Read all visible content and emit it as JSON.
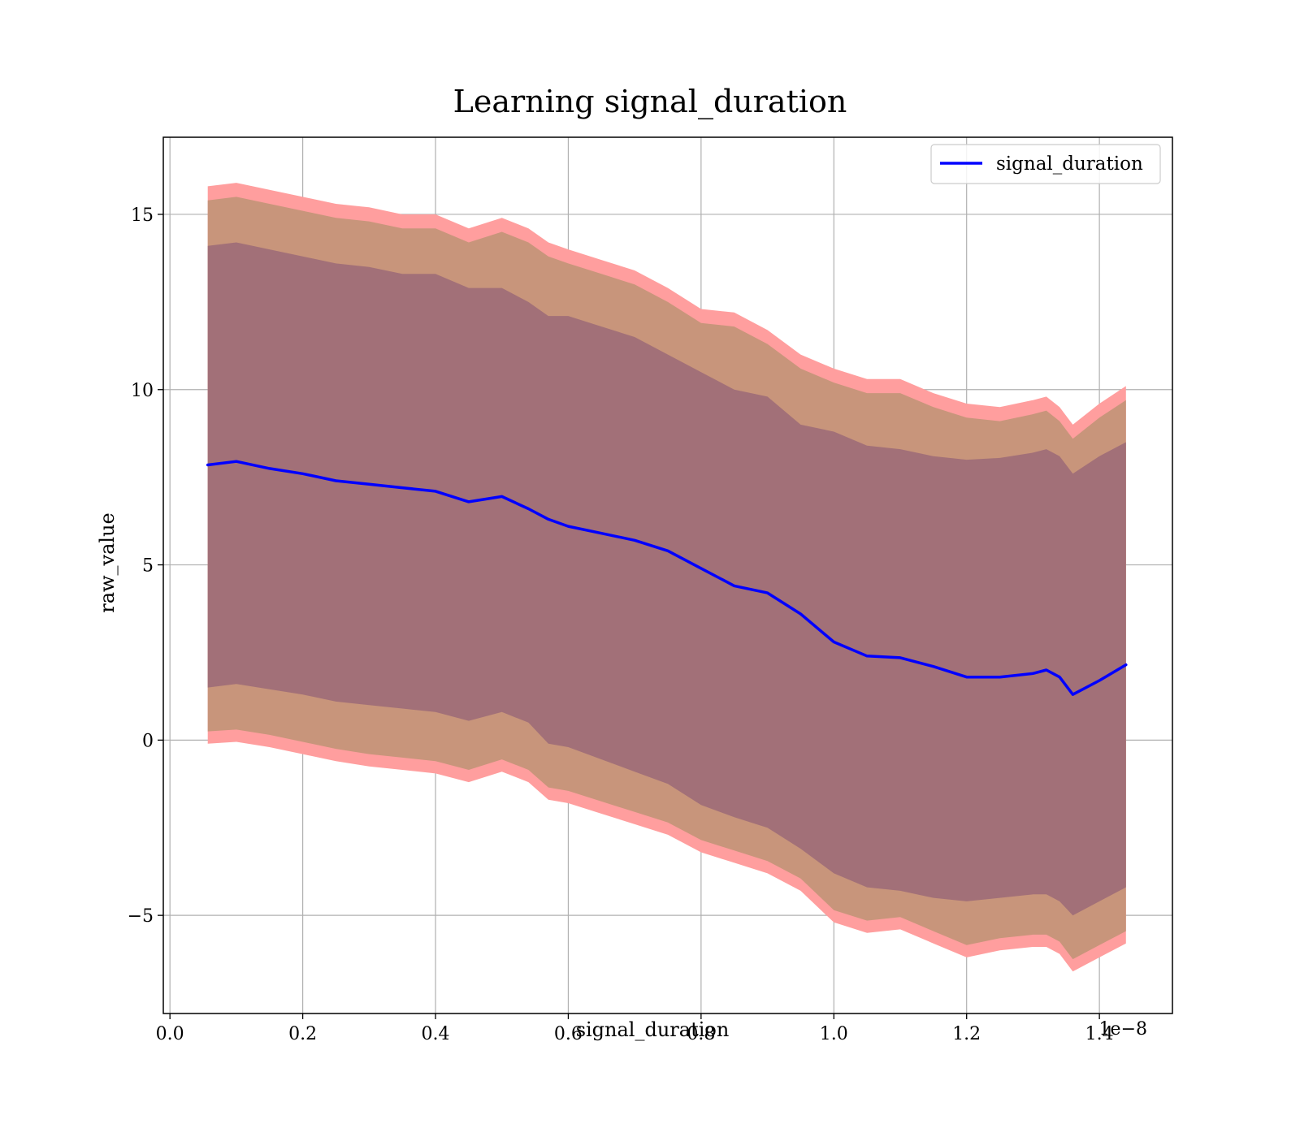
{
  "chart_data": {
    "type": "area",
    "title": "Learning signal_duration",
    "xlabel": "signal_duration",
    "ylabel": "raw_value",
    "x_offset_label": "1e−8",
    "xlim": [
      -0.01,
      1.51
    ],
    "ylim": [
      -7.8,
      17.2
    ],
    "x_ticks": [
      {
        "value": 0.0,
        "label": "0.0"
      },
      {
        "value": 0.2,
        "label": "0.2"
      },
      {
        "value": 0.4,
        "label": "0.4"
      },
      {
        "value": 0.6,
        "label": "0.6"
      },
      {
        "value": 0.8,
        "label": "0.8"
      },
      {
        "value": 1.0,
        "label": "1.0"
      },
      {
        "value": 1.2,
        "label": "1.2"
      },
      {
        "value": 1.4,
        "label": "1.4"
      }
    ],
    "y_ticks": [
      {
        "value": 15,
        "label": "15"
      },
      {
        "value": 10,
        "label": "10"
      },
      {
        "value": 5,
        "label": "5"
      },
      {
        "value": 0,
        "label": "0"
      },
      {
        "value": -5,
        "label": "−5"
      }
    ],
    "grid": true,
    "legend": {
      "position": "top-right",
      "entries": [
        "signal_duration"
      ]
    },
    "colors": {
      "line": "#0000ff",
      "outer_band": "#ff9e9e",
      "middle_band": "#c8957b",
      "inner_band": "#a27078"
    },
    "x": [
      0.057,
      0.1,
      0.15,
      0.2,
      0.25,
      0.3,
      0.35,
      0.4,
      0.45,
      0.5,
      0.54,
      0.57,
      0.6,
      0.65,
      0.7,
      0.75,
      0.8,
      0.85,
      0.9,
      0.95,
      1.0,
      1.05,
      1.1,
      1.15,
      1.2,
      1.25,
      1.3,
      1.32,
      1.34,
      1.36,
      1.4,
      1.44
    ],
    "series": [
      {
        "name": "signal_duration",
        "role": "mean",
        "values": [
          7.85,
          7.95,
          7.75,
          7.6,
          7.4,
          7.3,
          7.2,
          7.1,
          6.8,
          6.95,
          6.6,
          6.3,
          6.1,
          5.9,
          5.7,
          5.4,
          4.9,
          4.4,
          4.2,
          3.6,
          2.8,
          2.4,
          2.35,
          2.1,
          1.8,
          1.8,
          1.9,
          2.0,
          1.8,
          1.3,
          1.7,
          2.15
        ]
      },
      {
        "role": "outer_upper",
        "values": [
          15.8,
          15.9,
          15.7,
          15.5,
          15.3,
          15.2,
          15.0,
          15.0,
          14.6,
          14.9,
          14.6,
          14.2,
          14.0,
          13.7,
          13.4,
          12.9,
          12.3,
          12.2,
          11.7,
          11.0,
          10.6,
          10.3,
          10.3,
          9.9,
          9.6,
          9.5,
          9.7,
          9.8,
          9.5,
          9.0,
          9.6,
          10.1
        ]
      },
      {
        "role": "outer_lower",
        "values": [
          -0.1,
          -0.05,
          -0.2,
          -0.4,
          -0.6,
          -0.75,
          -0.85,
          -0.95,
          -1.2,
          -0.9,
          -1.2,
          -1.7,
          -1.8,
          -2.1,
          -2.4,
          -2.7,
          -3.2,
          -3.5,
          -3.8,
          -4.3,
          -5.2,
          -5.5,
          -5.4,
          -5.8,
          -6.2,
          -6.0,
          -5.9,
          -5.9,
          -6.1,
          -6.6,
          -6.2,
          -5.8
        ]
      },
      {
        "role": "middle_upper",
        "values": [
          15.4,
          15.5,
          15.3,
          15.1,
          14.9,
          14.8,
          14.6,
          14.6,
          14.2,
          14.5,
          14.2,
          13.8,
          13.6,
          13.3,
          13.0,
          12.5,
          11.9,
          11.8,
          11.3,
          10.6,
          10.2,
          9.9,
          9.9,
          9.5,
          9.2,
          9.1,
          9.3,
          9.4,
          9.1,
          8.6,
          9.2,
          9.7
        ]
      },
      {
        "role": "middle_lower",
        "values": [
          0.25,
          0.3,
          0.15,
          -0.05,
          -0.25,
          -0.4,
          -0.5,
          -0.6,
          -0.85,
          -0.55,
          -0.85,
          -1.35,
          -1.45,
          -1.75,
          -2.05,
          -2.35,
          -2.85,
          -3.15,
          -3.45,
          -3.95,
          -4.85,
          -5.15,
          -5.05,
          -5.45,
          -5.85,
          -5.65,
          -5.55,
          -5.55,
          -5.75,
          -6.25,
          -5.85,
          -5.45
        ]
      },
      {
        "role": "inner_upper",
        "values": [
          14.1,
          14.2,
          14.0,
          13.8,
          13.6,
          13.5,
          13.3,
          13.3,
          12.9,
          12.9,
          12.5,
          12.1,
          12.1,
          11.8,
          11.5,
          11.0,
          10.5,
          10.0,
          9.8,
          9.0,
          8.8,
          8.4,
          8.3,
          8.1,
          8.0,
          8.05,
          8.2,
          8.3,
          8.1,
          7.6,
          8.1,
          8.5
        ]
      },
      {
        "role": "inner_lower",
        "values": [
          1.5,
          1.6,
          1.45,
          1.3,
          1.1,
          1.0,
          0.9,
          0.8,
          0.55,
          0.8,
          0.5,
          -0.1,
          -0.2,
          -0.55,
          -0.9,
          -1.25,
          -1.85,
          -2.2,
          -2.5,
          -3.1,
          -3.8,
          -4.2,
          -4.3,
          -4.5,
          -4.6,
          -4.5,
          -4.4,
          -4.4,
          -4.6,
          -5.0,
          -4.6,
          -4.2
        ]
      }
    ]
  }
}
